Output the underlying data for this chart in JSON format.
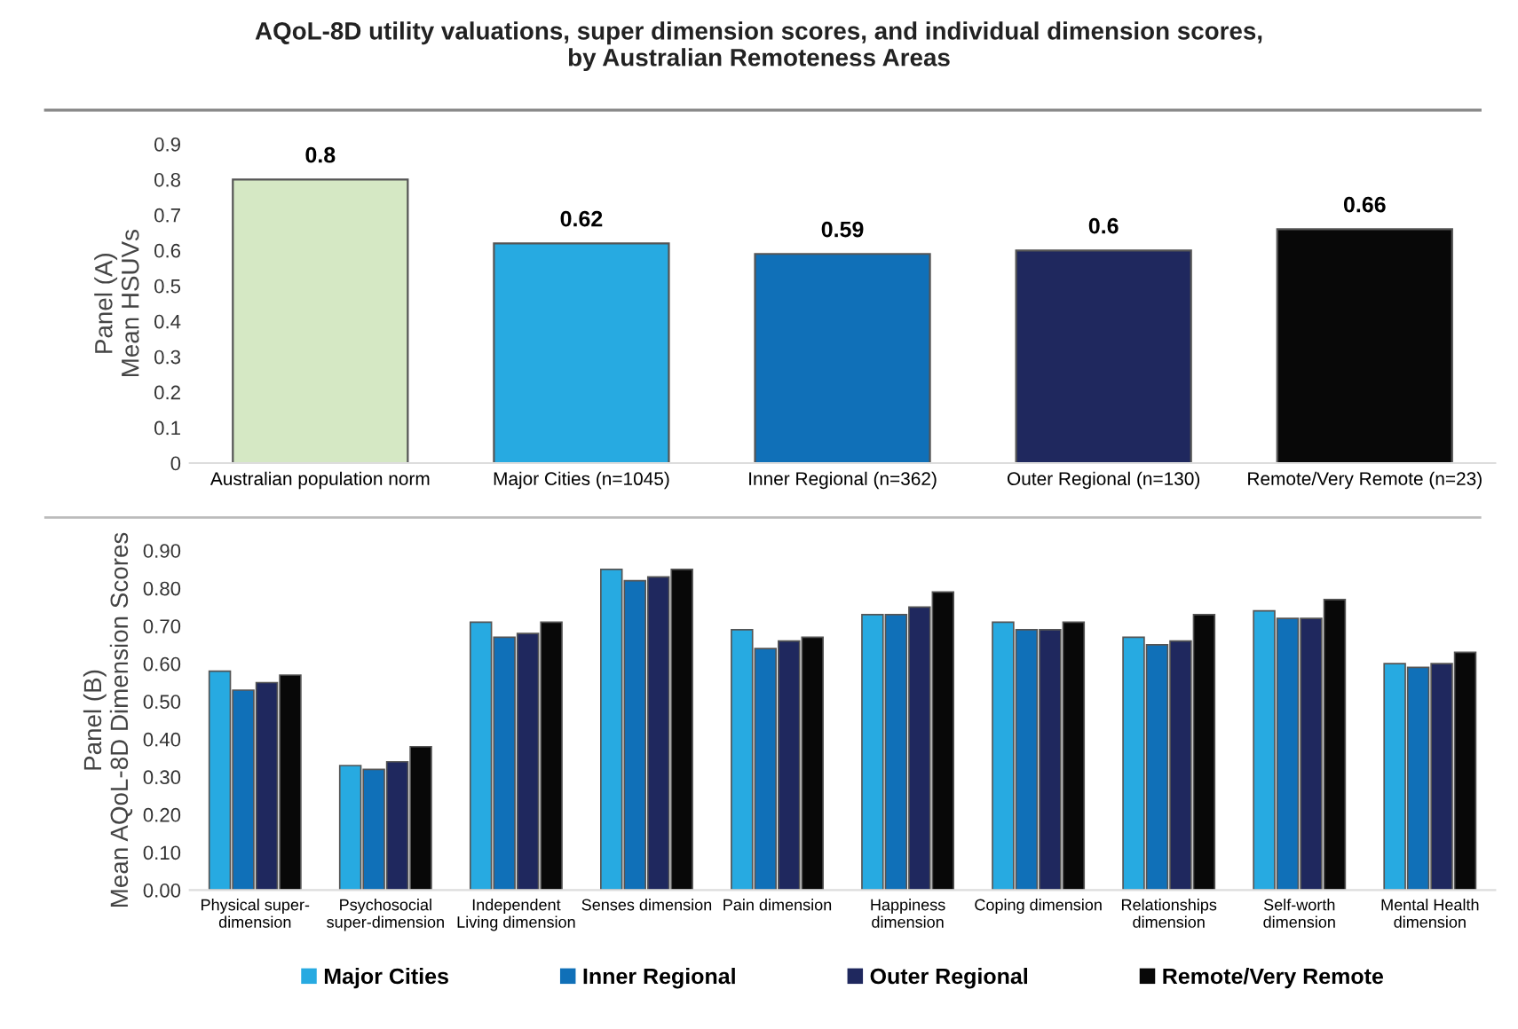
{
  "chart_data": [
    {
      "type": "bar",
      "title": "AQoL-8D utility valuations, super dimension scores, and individual dimension scores,\nby Australian Remoteness Areas",
      "ylabel": "Panel (A)\nMean HSUVs",
      "categories": [
        "Australian population norm",
        "Major Cities (n=1045)",
        "Inner Regional (n=362)",
        "Outer Regional (n=130)",
        "Remote/Very Remote (n=23)"
      ],
      "values": [
        0.8,
        0.62,
        0.59,
        0.6,
        0.66
      ],
      "colors": [
        "#d5e8c4",
        "#27aae1",
        "#1070b8",
        "#1f285e",
        "#080808"
      ],
      "data_labels": true,
      "ylim": [
        0,
        0.9
      ],
      "yticks": [
        0,
        0.1,
        0.2,
        0.3,
        0.4,
        0.5,
        0.6,
        0.7,
        0.8,
        0.9
      ],
      "grid": false
    },
    {
      "type": "bar",
      "ylabel": "Panel (B)\nMean AQoL-8D Dimension Scores",
      "categories": [
        "Physical super-\ndimension",
        "Psychosocial\nsuper-dimension",
        "Independent\nLiving dimension",
        "Senses dimension",
        "Pain dimension",
        "Happiness\ndimension",
        "Coping dimension",
        "Relationships\ndimension",
        "Self-worth\ndimension",
        "Mental Health\ndimension"
      ],
      "series": [
        {
          "name": "Major Cities",
          "color": "#27aae1",
          "values": [
            0.58,
            0.33,
            0.71,
            0.85,
            0.69,
            0.73,
            0.71,
            0.67,
            0.74,
            0.6
          ]
        },
        {
          "name": "Inner Regional",
          "color": "#1070b8",
          "values": [
            0.53,
            0.32,
            0.67,
            0.82,
            0.64,
            0.73,
            0.69,
            0.65,
            0.72,
            0.59
          ]
        },
        {
          "name": "Outer Regional",
          "color": "#1f285e",
          "values": [
            0.55,
            0.34,
            0.68,
            0.83,
            0.66,
            0.75,
            0.69,
            0.66,
            0.72,
            0.6
          ]
        },
        {
          "name": "Remote/Very Remote",
          "color": "#080808",
          "values": [
            0.57,
            0.38,
            0.71,
            0.85,
            0.67,
            0.79,
            0.71,
            0.73,
            0.77,
            0.63
          ]
        }
      ],
      "ylim": [
        0,
        0.9
      ],
      "yticks": [
        {
          "value": 0,
          "label": "0.00"
        },
        {
          "value": 0.1,
          "label": "0.10"
        },
        {
          "value": 0.2,
          "label": "0.20"
        },
        {
          "value": 0.3,
          "label": "0.30"
        },
        {
          "value": 0.4,
          "label": "0.40"
        },
        {
          "value": 0.5,
          "label": "0.50"
        },
        {
          "value": 0.6,
          "label": "0.60"
        },
        {
          "value": 0.7,
          "label": "0.70"
        },
        {
          "value": 0.8,
          "label": "0.80"
        },
        {
          "value": 0.9,
          "label": "0.90"
        }
      ],
      "grid": false,
      "legend": "bottom"
    }
  ]
}
